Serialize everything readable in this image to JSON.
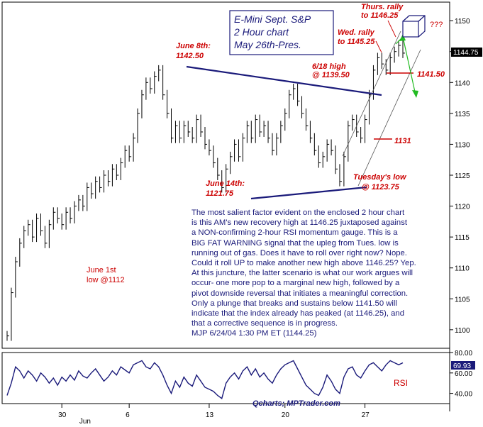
{
  "chart_data": [
    {
      "type": "bar",
      "title": "E-Mini Sept. S&P",
      "subtitle_lines": [
        "2 Hour chart",
        "May 26th-Pres."
      ],
      "ylim": [
        1097,
        1153
      ],
      "yticks": [
        1100,
        1105,
        1110,
        1115,
        1120,
        1125,
        1130,
        1135,
        1140,
        1145,
        1150
      ],
      "last_price": "1144.75",
      "xtick_labels": [
        {
          "label": "30",
          "bar": 13
        },
        {
          "label": "Jun",
          "bar": 18
        },
        {
          "label": "6",
          "bar": 29
        },
        {
          "label": "13",
          "bar": 48
        },
        {
          "label": "20",
          "bar": 66
        },
        {
          "label": "27",
          "bar": 85
        }
      ],
      "closes": [
        1099,
        1106,
        1111,
        1114,
        1116,
        1117,
        1115,
        1118,
        1116,
        1114,
        1117,
        1119,
        1118,
        1117,
        1119,
        1118,
        1120,
        1121,
        1120,
        1123,
        1122,
        1124,
        1123,
        1125,
        1124,
        1126,
        1125,
        1127,
        1129,
        1128,
        1131,
        1135,
        1138,
        1140,
        1139,
        1141,
        1142,
        1138,
        1135,
        1131,
        1133,
        1131,
        1133,
        1132,
        1131,
        1134,
        1132,
        1130,
        1129,
        1127,
        1125,
        1123,
        1126,
        1128,
        1130,
        1128,
        1131,
        1133,
        1131,
        1134,
        1132,
        1133,
        1131,
        1129,
        1131,
        1133,
        1135,
        1138,
        1139,
        1137,
        1135,
        1133,
        1131,
        1129,
        1127,
        1128,
        1130,
        1129,
        1126,
        1124,
        1128,
        1133,
        1134,
        1132,
        1131,
        1134,
        1138,
        1142,
        1144,
        1143,
        1142,
        1144,
        1145,
        1146,
        1144.75
      ],
      "rsi_ylim": [
        30,
        80
      ],
      "rsi_yticks": [
        40,
        60,
        80
      ],
      "rsi_label": "RSI",
      "rsi_last": "69.93",
      "rsi": [
        38,
        50,
        66,
        62,
        55,
        62,
        58,
        52,
        60,
        56,
        50,
        55,
        48,
        56,
        52,
        58,
        53,
        62,
        57,
        55,
        60,
        64,
        58,
        52,
        56,
        62,
        58,
        66,
        63,
        60,
        68,
        70,
        72,
        66,
        64,
        70,
        66,
        58,
        48,
        40,
        52,
        46,
        56,
        50,
        47,
        58,
        52,
        46,
        44,
        42,
        38,
        35,
        50,
        56,
        60,
        54,
        62,
        66,
        58,
        64,
        56,
        60,
        54,
        50,
        58,
        64,
        68,
        70,
        72,
        64,
        56,
        48,
        44,
        40,
        38,
        46,
        58,
        52,
        44,
        40,
        56,
        64,
        66,
        58,
        55,
        62,
        68,
        70,
        66,
        62,
        68,
        72,
        70,
        68,
        69.93
      ]
    }
  ],
  "annotations": {
    "june8_date": "June 8th:",
    "june8_value": "1142.50",
    "june18_date": "6/18 high",
    "june18_value": "@ 1139.50",
    "june14_date": "June 14th:",
    "june14_value": "1121.75",
    "tuesday_date": "Tuesday's low",
    "tuesday_value": "@ 1123.75",
    "wed_date": "Wed. rally",
    "wed_value": "to 1145.25",
    "thurs_date": "Thurs. rally",
    "thurs_value": "to 1146.25",
    "question": "???",
    "level_1141": "1141.50",
    "level_1131": "1131",
    "june1_label": "June 1st",
    "june1_value": "low @1112"
  },
  "commentary": "The most salient factor evident on the enclosed 2 hour chart\nis this AM's new recovery high at 1146.25 juxtaposed against\na NON-confirming 2-hour RSI momentum gauge. This is a\nBIG FAT WARNING signal that the upleg from Tues. low is\nrunning out of gas. Does it have to roll over right now? Nope.\nCould it roll UP to make another new high above 1146.25? Yep.\nAt this juncture, the latter scenario is what our work argues will\noccur- one more pop to a marginal new high, followed by a\npivot downside reversal that initiates a meaningful correction.\nOnly a plunge that breaks and sustains below 1141.50 will\nindicate that the index already has peaked (at 1146.25), and\nthat a corrective sequence is in progress.\nMJP 6/24/04 1:30 PM ET (1144.25)",
  "credit": "Qcharts; MPTrader.com",
  "colors": {
    "bars": "#000000",
    "trendline": "#1a1a7a",
    "annotation": "#cc0000",
    "arrow": "#22bb22",
    "price_box": "#000000",
    "rsi_box": "#1a1a7a"
  }
}
